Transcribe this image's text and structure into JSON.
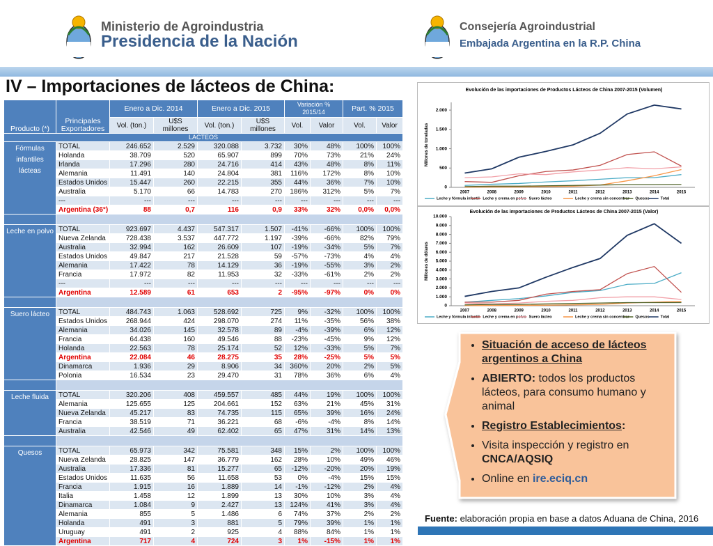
{
  "header": {
    "left": {
      "line1": "Ministerio de Agroindustria",
      "line2": "Presidencia de la Nación"
    },
    "right": {
      "line1": "Consejería Agroindustrial",
      "line2": "Embajada Argentina en la R.P. China"
    }
  },
  "title": "IV – Importaciones de lácteos de China:",
  "table": {
    "columns": {
      "product": "Producto (*)",
      "exporters": "Principales Exportadores",
      "periods": [
        "Enero a Dic. 2014",
        "Enero a Dic. 2015",
        "Variación % 2015/14",
        "Part. % 2015"
      ],
      "sub": [
        "Vol. (ton.)",
        "U$S millones",
        "Vol. (ton.)",
        "U$S millones",
        "Vol.",
        "Valor",
        "Vol.",
        "Valor"
      ]
    },
    "section": "LACTEOS",
    "groups": [
      {
        "product": "Fórmulas infantiles lácteas",
        "highlight_rows": [
          7
        ],
        "rows": [
          [
            "TOTAL",
            "246.652",
            "2.529",
            "320.088",
            "3.732",
            "30%",
            "48%",
            "100%",
            "100%"
          ],
          [
            "Holanda",
            "38.709",
            "520",
            "65.907",
            "899",
            "70%",
            "73%",
            "21%",
            "24%"
          ],
          [
            "Irlanda",
            "17.296",
            "280",
            "24.716",
            "414",
            "43%",
            "48%",
            "8%",
            "11%"
          ],
          [
            "Alemania",
            "11.491",
            "140",
            "24.804",
            "381",
            "116%",
            "172%",
            "8%",
            "10%"
          ],
          [
            "Estados Unidos",
            "15.447",
            "260",
            "22.215",
            "355",
            "44%",
            "36%",
            "7%",
            "10%"
          ],
          [
            "Australia",
            "5.170",
            "66",
            "14.783",
            "270",
            "186%",
            "312%",
            "5%",
            "7%"
          ],
          [
            "---",
            "---",
            "---",
            "---",
            "---",
            "---",
            "---",
            "---",
            "---"
          ],
          [
            "Argentina (36°)",
            "88",
            "0,7",
            "116",
            "0,9",
            "33%",
            "32%",
            "0,0%",
            "0,0%"
          ]
        ]
      },
      {
        "product": "Leche en polvo",
        "highlight_rows": [
          7
        ],
        "rows": [
          [
            "TOTAL",
            "923.697",
            "4.437",
            "547.317",
            "1.507",
            "-41%",
            "-66%",
            "100%",
            "100%"
          ],
          [
            "Nueva Zelanda",
            "728.438",
            "3.537",
            "447.772",
            "1.197",
            "-39%",
            "-66%",
            "82%",
            "79%"
          ],
          [
            "Australia",
            "32.994",
            "162",
            "26.609",
            "107",
            "-19%",
            "-34%",
            "5%",
            "7%"
          ],
          [
            "Estados Unidos",
            "49.847",
            "217",
            "21.528",
            "59",
            "-57%",
            "-73%",
            "4%",
            "4%"
          ],
          [
            "Alemania",
            "17.422",
            "78",
            "14.129",
            "36",
            "-19%",
            "-55%",
            "3%",
            "2%"
          ],
          [
            "Francia",
            "17.972",
            "82",
            "11.953",
            "32",
            "-33%",
            "-61%",
            "2%",
            "2%"
          ],
          [
            "---",
            "---",
            "---",
            "---",
            "---",
            "---",
            "---",
            "---",
            "---"
          ],
          [
            "Argentina",
            "12.589",
            "61",
            "653",
            "2",
            "-95%",
            "-97%",
            "0%",
            "0%"
          ]
        ]
      },
      {
        "product": "Suero lácteo",
        "highlight_rows": [
          5
        ],
        "rows": [
          [
            "TOTAL",
            "484.743",
            "1.063",
            "528.692",
            "725",
            "9%",
            "-32%",
            "100%",
            "100%"
          ],
          [
            "Estados Unidos",
            "268.944",
            "424",
            "298.070",
            "274",
            "11%",
            "-35%",
            "56%",
            "38%"
          ],
          [
            "Alemania",
            "34.026",
            "145",
            "32.578",
            "89",
            "-4%",
            "-39%",
            "6%",
            "12%"
          ],
          [
            "Francia",
            "64.438",
            "160",
            "49.546",
            "88",
            "-23%",
            "-45%",
            "9%",
            "12%"
          ],
          [
            "Holanda",
            "22.563",
            "78",
            "25.174",
            "52",
            "12%",
            "-33%",
            "5%",
            "7%"
          ],
          [
            "Argentina",
            "22.084",
            "46",
            "28.275",
            "35",
            "28%",
            "-25%",
            "5%",
            "5%"
          ],
          [
            "Dinamarca",
            "1.936",
            "29",
            "8.906",
            "34",
            "360%",
            "20%",
            "2%",
            "5%"
          ],
          [
            "Polonia",
            "16.534",
            "23",
            "29.470",
            "31",
            "78%",
            "36%",
            "6%",
            "4%"
          ]
        ]
      },
      {
        "product": "Leche fluida",
        "highlight_rows": [],
        "rows": [
          [
            "TOTAL",
            "320.206",
            "408",
            "459.557",
            "485",
            "44%",
            "19%",
            "100%",
            "100%"
          ],
          [
            "Alemania",
            "125.655",
            "125",
            "204.661",
            "152",
            "63%",
            "21%",
            "45%",
            "31%"
          ],
          [
            "Nueva Zelanda",
            "45.217",
            "83",
            "74.735",
            "115",
            "65%",
            "39%",
            "16%",
            "24%"
          ],
          [
            "Francia",
            "38.519",
            "71",
            "36.221",
            "68",
            "-6%",
            "-4%",
            "8%",
            "14%"
          ],
          [
            "Australia",
            "42.546",
            "49",
            "62.402",
            "65",
            "47%",
            "31%",
            "14%",
            "13%"
          ]
        ]
      },
      {
        "product": "Quesos",
        "highlight_rows": [
          10
        ],
        "rows": [
          [
            "TOTAL",
            "65.973",
            "342",
            "75.581",
            "348",
            "15%",
            "2%",
            "100%",
            "100%"
          ],
          [
            "Nueva Zelanda",
            "28.825",
            "147",
            "36.779",
            "162",
            "28%",
            "10%",
            "49%",
            "46%"
          ],
          [
            "Australia",
            "17.336",
            "81",
            "15.277",
            "65",
            "-12%",
            "-20%",
            "20%",
            "19%"
          ],
          [
            "Estados Unidos",
            "11.635",
            "56",
            "11.658",
            "53",
            "0%",
            "-4%",
            "15%",
            "15%"
          ],
          [
            "Francia",
            "1.915",
            "16",
            "1.889",
            "14",
            "-1%",
            "-12%",
            "2%",
            "4%"
          ],
          [
            "Italia",
            "1.458",
            "12",
            "1.899",
            "13",
            "30%",
            "10%",
            "3%",
            "4%"
          ],
          [
            "Dinamarca",
            "1.084",
            "9",
            "2.427",
            "13",
            "124%",
            "41%",
            "3%",
            "4%"
          ],
          [
            "Alemania",
            "855",
            "5",
            "1.486",
            "6",
            "74%",
            "37%",
            "2%",
            "2%"
          ],
          [
            "Holanda",
            "491",
            "3",
            "881",
            "5",
            "79%",
            "39%",
            "1%",
            "1%"
          ],
          [
            "Uruguay",
            "491",
            "2",
            "925",
            "4",
            "88%",
            "84%",
            "1%",
            "1%"
          ],
          [
            "Argentina",
            "717",
            "4",
            "724",
            "3",
            "1%",
            "-15%",
            "1%",
            "1%"
          ]
        ]
      }
    ]
  },
  "chart_data": [
    {
      "type": "line",
      "title": "Evolución de las importaciones de Productos Lácteos de China 2007-2015 (Volumen)",
      "y_label": "Millones de toneladas",
      "categories": [
        "2007",
        "2008",
        "2009",
        "2010",
        "2011",
        "2012",
        "2013",
        "2014",
        "2015"
      ],
      "ylim": [
        0,
        2200
      ],
      "yticks": [
        0,
        500,
        {
          "value": 1000,
          "label": "1.000"
        },
        {
          "value": 1500,
          "label": "1.500"
        },
        {
          "value": 2000,
          "label": "2.000"
        }
      ],
      "series": [
        {
          "name": "Leche y fórmula infantil",
          "color": "#4bacc6",
          "values": [
            50,
            80,
            100,
            140,
            170,
            210,
            250,
            250,
            330
          ]
        },
        {
          "name": "Leche y crema en polvo",
          "color": "#c0504d",
          "values": [
            150,
            130,
            300,
            410,
            450,
            570,
            850,
            920,
            550
          ]
        },
        {
          "name": "Suero lácteo",
          "color": "#f2a0a8",
          "values": [
            250,
            270,
            350,
            330,
            400,
            450,
            510,
            480,
            530
          ]
        },
        {
          "name": "Leche y crema sin concentrar",
          "color": "#f79646",
          "values": [
            5,
            10,
            10,
            20,
            30,
            60,
            170,
            300,
            460
          ]
        },
        {
          "name": "Quesos",
          "color": "#4f6228",
          "values": [
            20,
            30,
            30,
            40,
            50,
            60,
            70,
            70,
            75
          ]
        },
        {
          "name": "Total",
          "color": "#1f3864",
          "values": [
            370,
            480,
            780,
            930,
            1100,
            1400,
            1900,
            2130,
            2030
          ]
        }
      ]
    },
    {
      "type": "line",
      "title": "Evolución de las importaciones de Productos Lácteos de China 2007-2015 (Valor)",
      "y_label": "Millones de dólares",
      "categories": [
        "2007",
        "2008",
        "2009",
        "2010",
        "2011",
        "2012",
        "2013",
        "2014",
        "2015"
      ],
      "ylim": [
        0,
        10000
      ],
      "yticks": [
        0,
        {
          "value": 1000,
          "label": "1.000"
        },
        {
          "value": 2000,
          "label": "2.000"
        },
        {
          "value": 3000,
          "label": "3.000"
        },
        {
          "value": 4000,
          "label": "4.000"
        },
        {
          "value": 5000,
          "label": "5.000"
        },
        {
          "value": 6000,
          "label": "6.000"
        },
        {
          "value": 7000,
          "label": "7.000"
        },
        {
          "value": 8000,
          "label": "8.000"
        },
        {
          "value": 9000,
          "label": "9.000"
        },
        {
          "value": 10000,
          "label": "10.000"
        }
      ],
      "series": [
        {
          "name": "Leche y fórmula infantil",
          "color": "#4bacc6",
          "values": [
            400,
            600,
            800,
            1100,
            1500,
            1700,
            2400,
            2500,
            3700
          ]
        },
        {
          "name": "Leche y crema en polvo",
          "color": "#c0504d",
          "values": [
            400,
            400,
            600,
            1300,
            1600,
            1800,
            3600,
            4400,
            1500
          ]
        },
        {
          "name": "Suero lácteo",
          "color": "#f2a0a8",
          "values": [
            300,
            200,
            300,
            500,
            600,
            900,
            1000,
            1000,
            700
          ]
        },
        {
          "name": "Leche y crema sin concentrar",
          "color": "#f79646",
          "values": [
            20,
            30,
            40,
            60,
            100,
            150,
            300,
            400,
            500
          ]
        },
        {
          "name": "Quesos",
          "color": "#4f6228",
          "values": [
            100,
            150,
            150,
            200,
            250,
            300,
            350,
            350,
            350
          ]
        },
        {
          "name": "Total",
          "color": "#1f3864",
          "values": [
            1050,
            1600,
            2000,
            3200,
            4300,
            5300,
            7900,
            9200,
            7000
          ]
        }
      ]
    }
  ],
  "callout": {
    "items": [
      [
        {
          "text": "Situación de acceso de lácteos argentinos a China",
          "bold": true,
          "underline": true
        }
      ],
      [
        {
          "text": "ABIERTO:",
          "bold": true
        },
        {
          "text": " todos los productos lácteos, para consumo humano y animal"
        }
      ],
      [
        {
          "text": "Registro Establecimientos",
          "bold": true,
          "underline": true
        },
        {
          "text": ":",
          "bold": true
        }
      ],
      [
        {
          "text": "Visita inspección y registro en "
        },
        {
          "text": "CNCA/AQSIQ",
          "bold": true
        }
      ],
      [
        {
          "text": "Online en "
        },
        {
          "text": "ire.eciq.cn",
          "bold": true,
          "color": "#2e5c9a"
        }
      ]
    ]
  },
  "source": {
    "label": "Fuente:",
    "text": " elaboración propia en base a datos Aduana de China, 2016"
  }
}
